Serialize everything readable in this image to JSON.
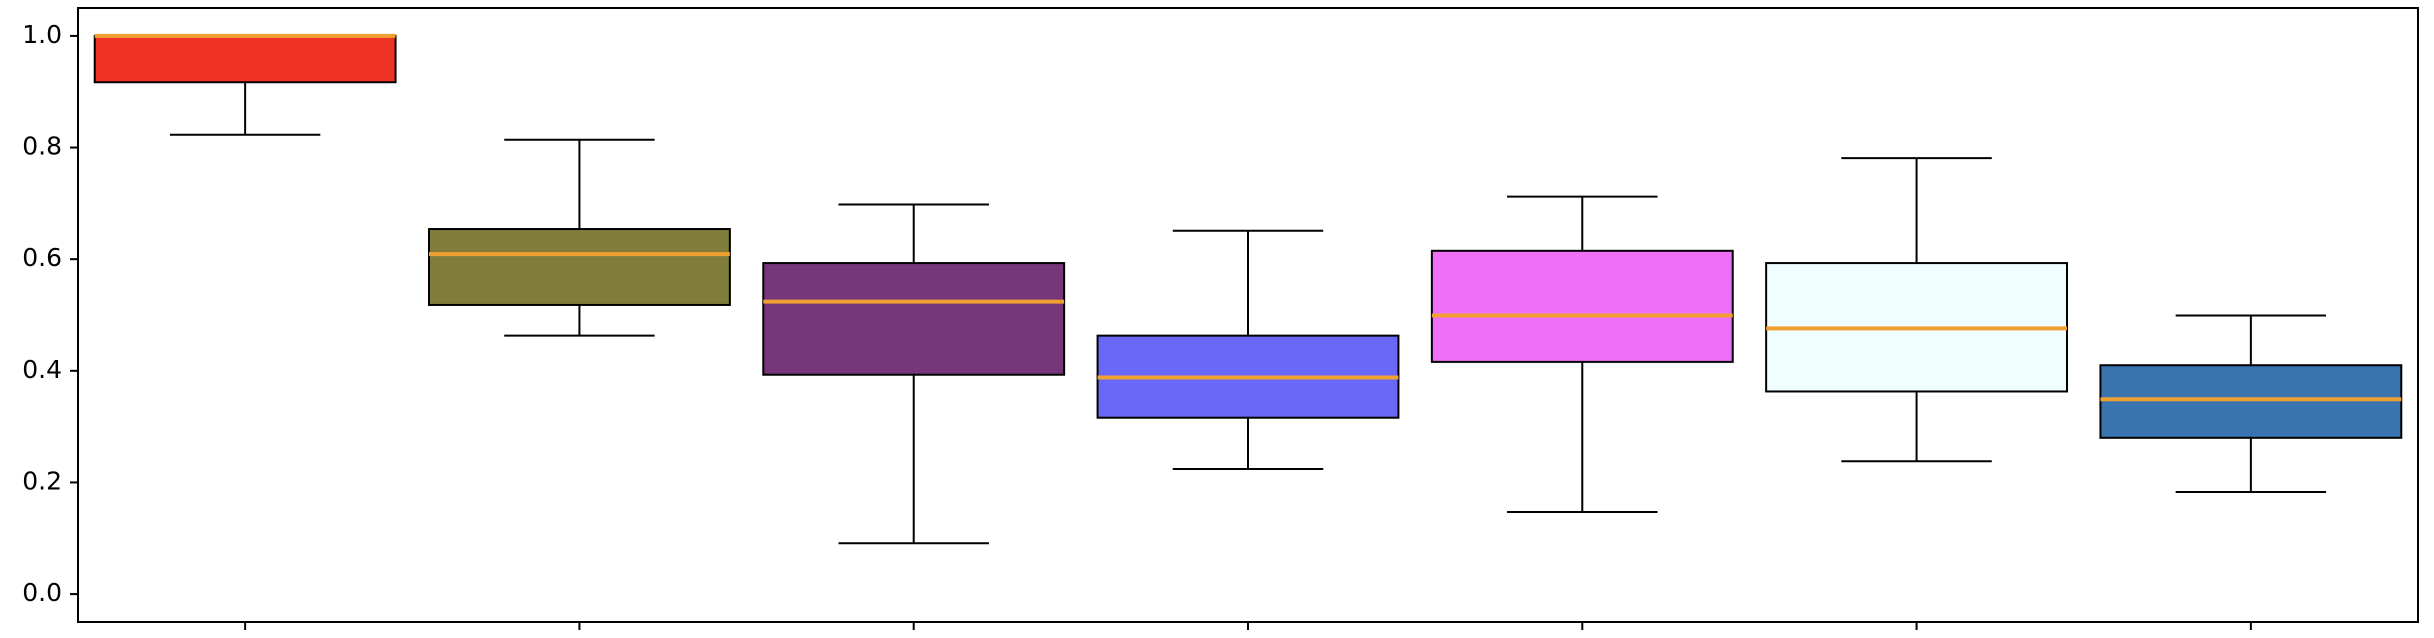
{
  "chart_data": {
    "type": "box",
    "categories": [
      null,
      null,
      null,
      null,
      null,
      null,
      null
    ],
    "boxes": [
      {
        "color": "#ee3224",
        "low": 0.823,
        "q1": 0.917,
        "median": 1.0,
        "q3": 1.0,
        "high": 1.0
      },
      {
        "color": "#807d3b",
        "low": 0.463,
        "q1": 0.518,
        "median": 0.609,
        "q3": 0.654,
        "high": 0.814
      },
      {
        "color": "#78367a",
        "low": 0.091,
        "q1": 0.393,
        "median": 0.524,
        "q3": 0.593,
        "high": 0.698
      },
      {
        "color": "#6a68f8",
        "low": 0.224,
        "q1": 0.316,
        "median": 0.388,
        "q3": 0.463,
        "high": 0.651
      },
      {
        "color": "#ee70f8",
        "low": 0.147,
        "q1": 0.416,
        "median": 0.499,
        "q3": 0.615,
        "high": 0.712
      },
      {
        "color": "#effefe",
        "low": 0.238,
        "q1": 0.363,
        "median": 0.476,
        "q3": 0.593,
        "high": 0.781
      },
      {
        "color": "#3a74b0",
        "low": 0.183,
        "q1": 0.28,
        "median": 0.349,
        "q3": 0.41,
        "high": 0.499
      }
    ],
    "median_color": "#f0a030",
    "ylim": [
      -0.05,
      1.05
    ],
    "yticks": [
      {
        "value": 0,
        "label": "0.0"
      },
      0.2,
      0.4,
      0.6,
      0.8,
      {
        "value": 1,
        "label": "1.0"
      }
    ],
    "grid": false
  }
}
